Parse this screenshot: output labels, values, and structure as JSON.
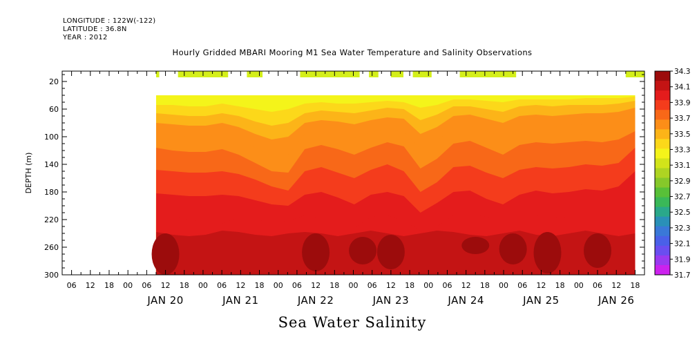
{
  "header": {
    "longitude": "LONGITUDE : 122W(-122)",
    "latitude": "LATITUDE : 36.8N",
    "year": "YEAR : 2012",
    "title": "Hourly Gridded MBARI Mooring M1 Sea Water Temperature and Salinity Observations"
  },
  "footer_title": "Sea Water Salinity",
  "colors": {
    "background": "#ffffff",
    "coverage_bar": "#d4ef1a",
    "palette": [
      "#cc22ee",
      "#9a3af0",
      "#6a4ef0",
      "#4a60e8",
      "#3a78d8",
      "#2a90b8",
      "#2aa88a",
      "#3ab858",
      "#58c038",
      "#86c82a",
      "#aed422",
      "#d2e41a",
      "#f4f41a",
      "#fcd81a",
      "#fcb418",
      "#fc8e18",
      "#f86818",
      "#f43c1c",
      "#e41c1c",
      "#c41414",
      "#9c0c0c"
    ]
  },
  "chart_data": {
    "type": "heatmap",
    "title": "Hourly Gridded MBARI Mooring M1 Sea Water Temperature and Salinity Observations",
    "variable": "Sea Water Salinity",
    "ylabel": "DEPTH (m)",
    "ylim": [
      300,
      5
    ],
    "y_ticks": [
      20,
      60,
      100,
      140,
      180,
      220,
      260,
      300
    ],
    "y_ticklabels": [
      "20",
      "60",
      "100",
      "140",
      "180",
      "220",
      "260",
      "300"
    ],
    "x_range_hours": [
      "2012-01-19 T03",
      "2012-01-26 T21"
    ],
    "x_hour_ticklabels": [
      "06",
      "12",
      "18",
      "00",
      "06",
      "12",
      "18",
      "00",
      "06",
      "12",
      "18",
      "00",
      "06",
      "12",
      "18",
      "00",
      "06",
      "12",
      "18",
      "00",
      "06",
      "12",
      "18",
      "00",
      "06",
      "12",
      "18",
      "00",
      "06",
      "12",
      "18"
    ],
    "x_day_labels": [
      "JAN 20",
      "JAN 21",
      "JAN 22",
      "JAN 23",
      "JAN 24",
      "JAN 25",
      "JAN 26"
    ],
    "colorbar": {
      "labels": [
        "34.3",
        "34.1",
        "33.9",
        "33.7",
        "33.5",
        "33.3",
        "33.1",
        "32.9",
        "32.7",
        "32.5",
        "32.3",
        "32.1",
        "31.9",
        "31.7"
      ],
      "min": 31.7,
      "max": 34.3,
      "step": 0.1
    },
    "data_depth_range": [
      40,
      300
    ],
    "data_time_range": [
      "2012-01-20 T09",
      "2012-01-26 T18"
    ],
    "surface_coverage_segments": [
      [
        "2012-01-20 T09",
        "2012-01-20 T10"
      ],
      [
        "2012-01-20 T16",
        "2012-01-21 T08"
      ],
      [
        "2012-01-21 T14",
        "2012-01-21 T19"
      ],
      [
        "2012-01-22 T07",
        "2012-01-23 T02"
      ],
      [
        "2012-01-23 T05",
        "2012-01-23 T08"
      ],
      [
        "2012-01-23 T12",
        "2012-01-23 T16"
      ],
      [
        "2012-01-23 T19",
        "2012-01-24 T01"
      ],
      [
        "2012-01-24 T10",
        "2012-01-25 T04"
      ],
      [
        "2012-01-26 T15",
        "2012-01-26 T21"
      ]
    ],
    "salinity_layers": [
      {
        "level": 34.2,
        "depth_upper": [
          238,
          242,
          244,
          242,
          236,
          238,
          242,
          244,
          240,
          238,
          240,
          244,
          240,
          236,
          240,
          244,
          240,
          236,
          238,
          242,
          244,
          240,
          236,
          242,
          244,
          240,
          236,
          240,
          244,
          240
        ]
      },
      {
        "level": 34.1,
        "depth_upper": [
          212,
          216,
          220,
          224,
          226,
          216,
          220,
          224,
          222,
          214,
          218,
          226,
          232,
          216,
          214,
          222,
          236,
          230,
          214,
          212,
          216,
          220,
          212,
          214,
          218,
          216,
          212,
          216,
          214,
          196
        ]
      },
      {
        "level": 34.0,
        "depth_upper": [
          182,
          184,
          186,
          186,
          184,
          186,
          192,
          198,
          200,
          184,
          180,
          188,
          198,
          184,
          180,
          186,
          210,
          196,
          180,
          178,
          190,
          198,
          184,
          178,
          182,
          180,
          176,
          178,
          172,
          150
        ]
      },
      {
        "level": 33.9,
        "depth_upper": [
          148,
          150,
          152,
          152,
          150,
          154,
          162,
          172,
          178,
          150,
          144,
          152,
          160,
          148,
          140,
          150,
          180,
          166,
          144,
          142,
          152,
          160,
          148,
          144,
          146,
          144,
          140,
          142,
          138,
          116
        ]
      },
      {
        "level": 33.8,
        "depth_upper": [
          116,
          120,
          122,
          122,
          118,
          126,
          138,
          150,
          152,
          118,
          112,
          118,
          126,
          116,
          108,
          114,
          146,
          132,
          110,
          106,
          116,
          126,
          112,
          108,
          110,
          108,
          106,
          108,
          104,
          92
        ]
      },
      {
        "level": 33.7,
        "depth_upper": [
          96,
          98,
          100,
          100,
          96,
          104,
          116,
          128,
          126,
          96,
          92,
          96,
          102,
          94,
          88,
          92,
          118,
          106,
          86,
          84,
          92,
          100,
          88,
          84,
          86,
          84,
          82,
          84,
          80,
          70
        ]
      },
      {
        "level": 33.6,
        "depth_upper": [
          80,
          82,
          84,
          84,
          80,
          86,
          96,
          104,
          100,
          80,
          76,
          78,
          82,
          76,
          72,
          74,
          96,
          86,
          70,
          68,
          74,
          80,
          70,
          68,
          70,
          68,
          66,
          66,
          64,
          58
        ]
      },
      {
        "level": 33.5,
        "depth_upper": [
          66,
          68,
          70,
          70,
          66,
          70,
          78,
          84,
          80,
          66,
          62,
          64,
          66,
          62,
          58,
          60,
          76,
          68,
          56,
          56,
          60,
          64,
          56,
          54,
          56,
          54,
          54,
          54,
          52,
          48
        ]
      },
      {
        "level": 33.4,
        "depth_upper": [
          54,
          54,
          56,
          56,
          52,
          56,
          60,
          64,
          60,
          52,
          50,
          52,
          52,
          50,
          48,
          50,
          58,
          54,
          46,
          46,
          48,
          50,
          46,
          46,
          46,
          46,
          44,
          44,
          44,
          42
        ]
      },
      {
        "level": 33.3,
        "depth_upper": [
          40,
          40,
          40,
          40,
          40,
          40,
          40,
          40,
          40,
          40,
          40,
          40,
          40,
          40,
          40,
          40,
          40,
          40,
          40,
          40,
          40,
          40,
          40,
          40,
          40,
          40,
          40,
          40,
          40,
          40
        ]
      }
    ],
    "high_salinity_pockets": [
      {
        "level": 34.3,
        "time": "2012-01-20 T12",
        "depth": [
          240,
          300
        ]
      },
      {
        "level": 34.3,
        "time": "2012-01-22 T12",
        "depth": [
          240,
          295
        ]
      },
      {
        "level": 34.3,
        "time": "2012-01-23 T03",
        "depth": [
          245,
          285
        ]
      },
      {
        "level": 34.3,
        "time": "2012-01-23 T12",
        "depth": [
          242,
          292
        ]
      },
      {
        "level": 34.3,
        "time": "2012-01-24 T15",
        "depth": [
          245,
          270
        ]
      },
      {
        "level": 34.3,
        "time": "2012-01-25 T03",
        "depth": [
          240,
          285
        ]
      },
      {
        "level": 34.3,
        "time": "2012-01-25 T14",
        "depth": [
          238,
          298
        ]
      },
      {
        "level": 34.3,
        "time": "2012-01-26 T06",
        "depth": [
          240,
          290
        ]
      }
    ]
  }
}
